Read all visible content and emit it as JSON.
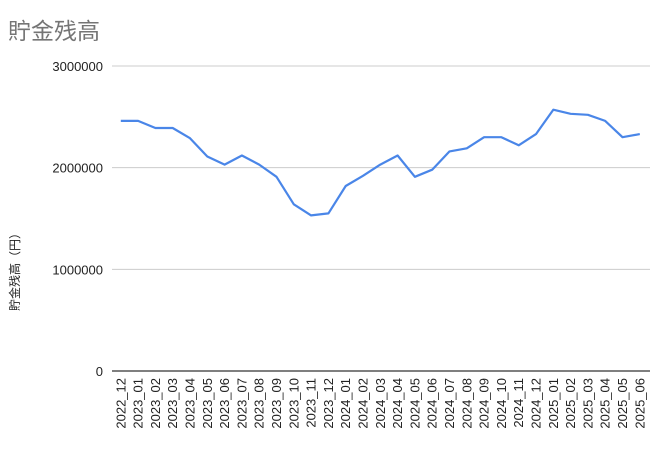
{
  "chart_data": {
    "type": "line",
    "title": "貯金残高",
    "xlabel": "",
    "ylabel": "貯金残高（円）",
    "ylim": [
      0,
      3000000
    ],
    "yticks": [
      "0",
      "1000000",
      "2000000",
      "3000000"
    ],
    "grid": true,
    "legend": "none",
    "line_color": "#4a86e8",
    "categories": [
      "2022_12",
      "2023_01",
      "2023_02",
      "2023_03",
      "2023_04",
      "2023_05",
      "2023_06",
      "2023_07",
      "2023_08",
      "2023_09",
      "2023_10",
      "2023_11",
      "2023_12",
      "2024_01",
      "2024_02",
      "2024_03",
      "2024_04",
      "2024_05",
      "2024_06",
      "2024_07",
      "2024_08",
      "2024_09",
      "2024_10",
      "2024_11",
      "2024_12",
      "2025_01",
      "2025_02",
      "2025_03",
      "2025_04",
      "2025_05",
      "2025_06"
    ],
    "series": [
      {
        "values": [
          2460000,
          2460000,
          2390000,
          2390000,
          2290000,
          2110000,
          2030000,
          2120000,
          2030000,
          1910000,
          1640000,
          1530000,
          1550000,
          1820000,
          1920000,
          2030000,
          2120000,
          1910000,
          1980000,
          2160000,
          2190000,
          2300000,
          2300000,
          2220000,
          2330000,
          2570000,
          2530000,
          2520000,
          2460000,
          2300000,
          2330000
        ]
      }
    ]
  }
}
